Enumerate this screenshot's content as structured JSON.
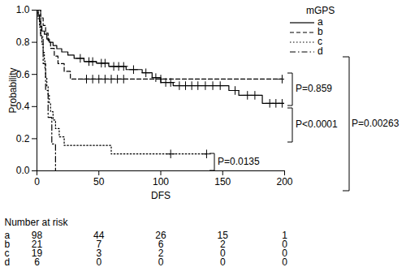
{
  "chart_data": {
    "type": "line",
    "x_label": "DFS",
    "y_label": "Probability",
    "legend_title": "mGPS",
    "legend": "top-right",
    "xlim": [
      0,
      200
    ],
    "xticks": [
      0,
      50,
      100,
      150,
      200
    ],
    "ylim": [
      0,
      1
    ],
    "yticks": [
      {
        "value": 0,
        "label": "0.0"
      },
      0.2,
      0.4,
      0.6,
      0.8,
      {
        "value": 1,
        "label": "1.0"
      }
    ],
    "series": [
      {
        "name": "a",
        "color": "#000000",
        "line_style": "solid",
        "marker": "plus",
        "x": [
          0,
          1,
          2,
          3,
          4,
          6,
          8,
          10,
          13,
          16,
          20,
          25,
          30,
          38,
          48,
          58,
          72,
          85,
          93,
          100,
          110,
          155,
          163,
          182,
          200
        ],
        "values": [
          1.0,
          0.97,
          0.93,
          0.9,
          0.87,
          0.85,
          0.82,
          0.8,
          0.78,
          0.76,
          0.74,
          0.72,
          0.7,
          0.68,
          0.67,
          0.65,
          0.63,
          0.61,
          0.58,
          0.55,
          0.53,
          0.5,
          0.47,
          0.42,
          0.42
        ],
        "censored_x": [
          35,
          42,
          45,
          52,
          55,
          62,
          66,
          70,
          78,
          88,
          96,
          104,
          108,
          115,
          120,
          125,
          130,
          136,
          142,
          148,
          160,
          170,
          176,
          188,
          193,
          198
        ]
      },
      {
        "name": "b",
        "color": "#000000",
        "line_style": "dashed",
        "marker": "plus",
        "x": [
          0,
          3,
          5,
          7,
          9,
          11,
          14,
          17,
          22,
          27,
          198
        ],
        "values": [
          1.0,
          0.952,
          0.905,
          0.857,
          0.81,
          0.762,
          0.714,
          0.667,
          0.619,
          0.571,
          0.571
        ],
        "censored_x": [
          40,
          45,
          50,
          55,
          60,
          65,
          70,
          100,
          198
        ]
      },
      {
        "name": "c",
        "color": "#000000",
        "line_style": "dotted",
        "marker": "plus",
        "x": [
          0,
          1,
          2,
          3,
          4,
          5,
          6,
          6.5,
          7,
          8,
          9,
          10,
          11,
          13,
          15,
          18,
          22,
          60,
          137
        ],
        "values": [
          1.0,
          0.947,
          0.895,
          0.842,
          0.789,
          0.737,
          0.684,
          0.632,
          0.579,
          0.526,
          0.474,
          0.421,
          0.368,
          0.316,
          0.263,
          0.211,
          0.158,
          0.105,
          0.105
        ],
        "censored_x": [
          108,
          137
        ]
      },
      {
        "name": "d",
        "color": "#000000",
        "line_style": "dashdot",
        "marker": "plus",
        "x": [
          0,
          3,
          5,
          7,
          9,
          12,
          15
        ],
        "values": [
          1.0,
          0.833,
          0.667,
          0.5,
          0.333,
          0.167,
          0.0
        ],
        "censored_x": []
      }
    ],
    "annotations": [
      "P=0.859",
      "P<0.0001",
      "P=0.00263",
      "P=0.0135"
    ],
    "risk_table": {
      "title": "Number at risk",
      "x": [
        0,
        50,
        100,
        150,
        200
      ],
      "rows": [
        {
          "name": "a",
          "values": [
            98,
            44,
            26,
            15,
            1
          ]
        },
        {
          "name": "b",
          "values": [
            21,
            7,
            6,
            2,
            0
          ]
        },
        {
          "name": "c",
          "values": [
            19,
            3,
            2,
            0,
            0
          ]
        },
        {
          "name": "d",
          "values": [
            6,
            0,
            0,
            0,
            0
          ]
        }
      ]
    }
  }
}
